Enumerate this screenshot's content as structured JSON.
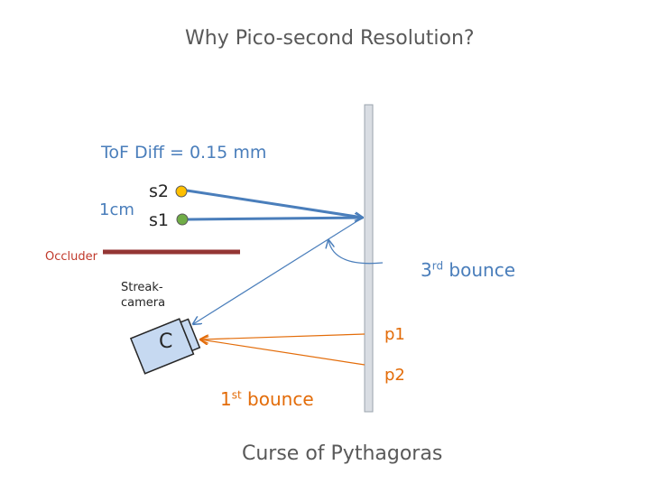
{
  "title": "Why Pico-second Resolution?",
  "tof_label": "ToF  Diff = 0.15 mm",
  "distance_label": "1cm",
  "source_2": "s2",
  "source_1": "s1",
  "occluder_label": "Occluder",
  "third_bounce": {
    "ordinal": "3",
    "suffix": "rd",
    "word": " bounce"
  },
  "camera_label": "Streak-camera",
  "camera_letter": "C",
  "point_1": "p1",
  "point_2": "p2",
  "first_bounce": {
    "ordinal": "1",
    "suffix": "st",
    "word": " bounce"
  },
  "footer": "Curse of Pythagoras",
  "colors": {
    "blue": "#4a7ebb",
    "orange": "#e36c09",
    "occluder": "#943634",
    "s2_fill": "#ffc000",
    "s1_fill": "#70ad47",
    "wall": "#d9dde3",
    "camera": "#c6d9f1"
  }
}
